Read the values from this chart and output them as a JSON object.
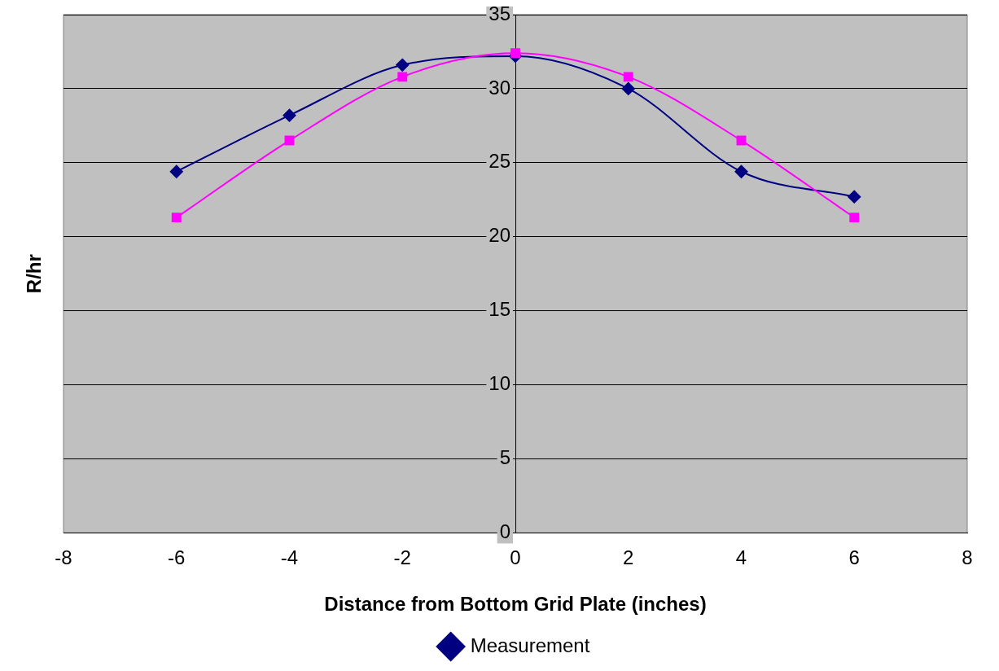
{
  "chart_data": {
    "type": "line",
    "xlabel": "Distance from Bottom Grid Plate (inches)",
    "ylabel": "R/hr",
    "x": [
      -6,
      -4,
      -2,
      0,
      2,
      4,
      6
    ],
    "series": [
      {
        "name": "Measurement",
        "color": "#000080",
        "marker": "diamond",
        "values": [
          24.4,
          28.2,
          31.6,
          32.2,
          30.0,
          24.4,
          22.7
        ]
      },
      {
        "color": "#ff00ff",
        "marker": "square",
        "values": [
          21.3,
          26.5,
          30.8,
          32.4,
          30.8,
          26.5,
          21.3
        ]
      }
    ],
    "xlim": [
      -8,
      8
    ],
    "xticks": [
      -8,
      -6,
      -4,
      -2,
      0,
      2,
      4,
      6,
      8
    ],
    "ylim": [
      0,
      35
    ],
    "yticks": [
      0,
      5,
      10,
      15,
      20,
      25,
      30,
      35
    ],
    "grid": "y",
    "legend": "bottom"
  }
}
